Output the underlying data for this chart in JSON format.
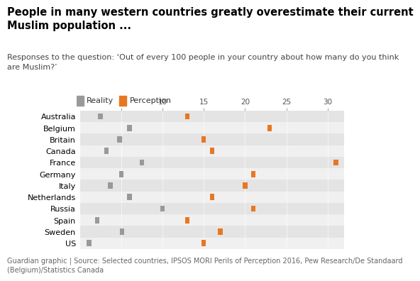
{
  "title": "People in many western countries greatly overestimate their current\nMuslim population ...",
  "subtitle": "Responses to the question: ‘Out of every 100 people in your country about how many do you think\nare Muslim?’",
  "footnote": "Guardian graphic | Source: Selected countries, IPSOS MORI Perils of Perception 2016, Pew Research/De Standaard\n(Belgium)/Statistics Canada",
  "countries": [
    "Australia",
    "Belgium",
    "Britain",
    "Canada",
    "France",
    "Germany",
    "Italy",
    "Netherlands",
    "Russia",
    "Spain",
    "Sweden",
    "US"
  ],
  "reality": [
    2.5,
    6.0,
    4.8,
    3.2,
    7.5,
    5.0,
    3.7,
    6.0,
    10.0,
    2.1,
    5.1,
    1.1
  ],
  "perception": [
    13.0,
    23.0,
    15.0,
    16.0,
    31.0,
    21.0,
    20.0,
    16.0,
    21.0,
    13.0,
    17.0,
    15.0
  ],
  "reality_color": "#999999",
  "perception_color": "#E87722",
  "row_bg_light": "#f0f0f0",
  "row_bg_dark": "#e4e4e4",
  "xlim": [
    0,
    32
  ],
  "xticks": [
    5,
    10,
    15,
    20,
    25,
    30
  ],
  "title_fontsize": 10.5,
  "subtitle_fontsize": 8.0,
  "label_fontsize": 8.0,
  "tick_fontsize": 7.5,
  "footnote_fontsize": 7.0,
  "legend_fontsize": 8.0
}
